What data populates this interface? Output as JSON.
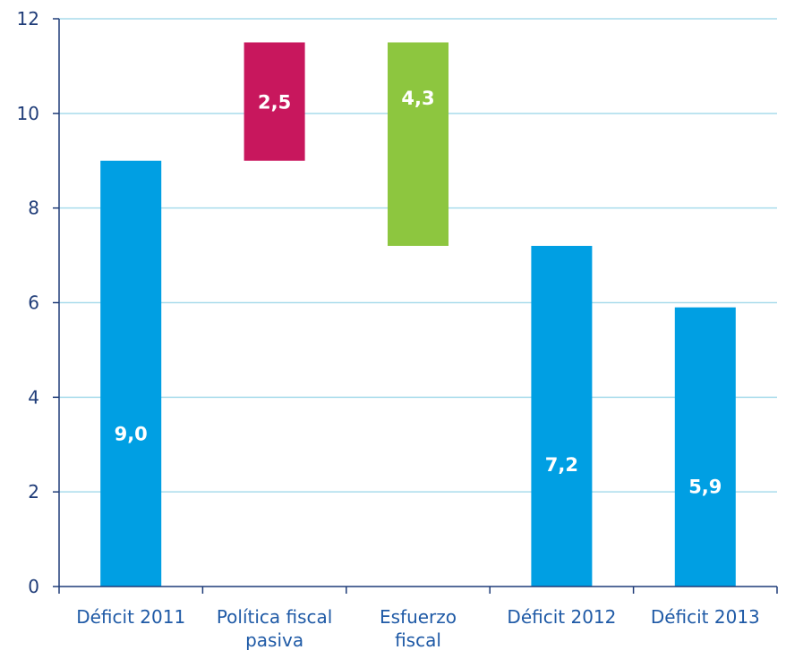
{
  "chart_data": {
    "type": "bar",
    "subtype": "waterfall",
    "categories": [
      [
        "Déficit 2011"
      ],
      [
        "Política fiscal",
        "pasiva"
      ],
      [
        "Esfuerzo",
        "fiscal"
      ],
      [
        "Déficit 2012"
      ],
      [
        "Déficit 2013"
      ]
    ],
    "bars": [
      {
        "start": 0,
        "end": 9.0,
        "label": "9,0",
        "color": "#009fe3"
      },
      {
        "start": 9.0,
        "end": 11.5,
        "label": "2,5",
        "color": "#c8175d"
      },
      {
        "start": 7.2,
        "end": 11.5,
        "label": "4,3",
        "color": "#8dc63f"
      },
      {
        "start": 0,
        "end": 7.2,
        "label": "7,2",
        "color": "#009fe3"
      },
      {
        "start": 0,
        "end": 5.9,
        "label": "5,9",
        "color": "#009fe3"
      }
    ],
    "yticks": [
      0,
      2,
      4,
      6,
      8,
      10,
      12
    ],
    "ylim": [
      0,
      12
    ],
    "grid": true,
    "legend": "none"
  }
}
